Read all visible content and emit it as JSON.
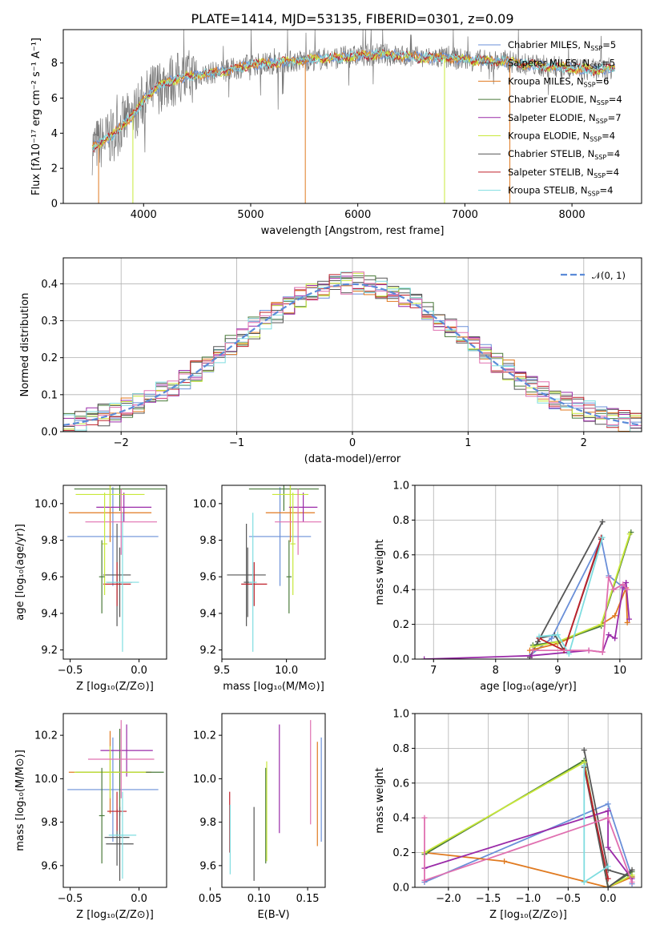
{
  "figure": {
    "title": "PLATE=1414, MJD=53135, FIBERID=0301, z=0.09"
  },
  "colors": {
    "chabrier_miles": "#6a8fd8",
    "salpeter_miles": "#555555",
    "kroupa_miles": "#e07a20",
    "chabrier_elodie": "#4a7a3a",
    "salpeter_elodie": "#9a2aa8",
    "kroupa_elodie": "#c8e83a",
    "chabrier_stelib": "#555555",
    "salpeter_stelib": "#c0202a",
    "kroupa_stelib": "#7fdde0",
    "data": "#777777",
    "pink": "#e070b0",
    "normal": "#5b8bd8"
  },
  "chart_data": [
    {
      "id": "spectrum",
      "type": "line",
      "xlabel": "wavelength [Angstrom, rest frame]",
      "ylabel": "Flux [fλ10⁻¹⁷ erg cm⁻² s⁻¹ A⁻¹]",
      "xlim": [
        3250,
        8650
      ],
      "ylim": [
        0,
        9.9
      ],
      "xticks": [
        "4000",
        "5000",
        "6000",
        "7000",
        "8000"
      ],
      "yticks": [
        "0",
        "2",
        "4",
        "6",
        "8"
      ],
      "legend_position": "upper right",
      "legend": [
        "Chabrier MILES, N_SSP=5",
        "Salpeter MILES, N_SSP=5",
        "Kroupa MILES, N_SSP=6",
        "Chabrier ELODIE, N_SSP=4",
        "Salpeter ELODIE, N_SSP=7",
        "Kroupa ELODIE, N_SSP=4",
        "Chabrier STELIB, N_SSP=4",
        "Salpeter STELIB, N_SSP=4",
        "Kroupa STELIB, N_SSP=4"
      ],
      "continuum_x": [
        3520,
        3700,
        3800,
        3900,
        4000,
        4100,
        4200,
        4400,
        4600,
        4800,
        5000,
        5200,
        5400,
        5600,
        5800,
        6000,
        6200,
        6400,
        6600,
        6800,
        7000,
        7200,
        7400,
        7600,
        7800,
        8000,
        8200,
        8400
      ],
      "continuum_y": [
        3.2,
        3.8,
        4.5,
        5.0,
        5.9,
        6.5,
        6.9,
        7.2,
        7.4,
        7.6,
        7.9,
        8.0,
        8.1,
        8.2,
        8.3,
        8.4,
        8.5,
        8.4,
        8.3,
        8.3,
        8.2,
        8.1,
        8.1,
        7.9,
        7.8,
        7.7,
        7.6,
        7.7
      ]
    },
    {
      "id": "residual_histogram",
      "type": "step",
      "xlabel": "(data-model)/error",
      "ylabel": "Normed distribution",
      "xlim": [
        -2.5,
        2.5
      ],
      "ylim": [
        0,
        0.47
      ],
      "xticks": [
        "−2",
        "−1",
        "0",
        "1",
        "2"
      ],
      "yticks": [
        "0.0",
        "0.1",
        "0.2",
        "0.3",
        "0.4"
      ],
      "grid": true,
      "legend": [
        "𝒩(0, 1)"
      ],
      "gaussian": {
        "mu": 0,
        "sigma": 1
      }
    },
    {
      "id": "age_vs_Z",
      "type": "errorbar",
      "xlabel": "Z [log₁₀(Z/Z⊙)]",
      "ylabel": "age  [log₁₀(age/yr)]",
      "xlim": [
        -0.55,
        0.2
      ],
      "ylim": [
        9.15,
        10.1
      ],
      "xticks": [
        "−0.5",
        "0.0"
      ],
      "yticks": [
        "9.2",
        "9.4",
        "9.6",
        "9.8",
        "10.0"
      ],
      "points": [
        {
          "x": -0.19,
          "xerr": 0.33,
          "y": 9.82,
          "yerr": 0.27,
          "c": "chabrier_miles"
        },
        {
          "x": -0.16,
          "xerr": 0.1,
          "y": 9.61,
          "yerr": 0.28,
          "c": "salpeter_miles"
        },
        {
          "x": -0.21,
          "xerr": 0.3,
          "y": 9.95,
          "yerr": 0.16,
          "c": "kroupa_miles"
        },
        {
          "x": -0.14,
          "xerr": 0.33,
          "y": 10.08,
          "yerr": 0.12,
          "c": "chabrier_elodie"
        },
        {
          "x": -0.11,
          "xerr": 0.2,
          "y": 9.98,
          "yerr": 0.08,
          "c": "salpeter_elodie"
        },
        {
          "x": -0.21,
          "xerr": 0.25,
          "y": 10.05,
          "yerr": 0.07,
          "c": "kroupa_elodie"
        },
        {
          "x": -0.14,
          "xerr": 0.09,
          "y": 9.57,
          "yerr": 0.19,
          "c": "chabrier_stelib"
        },
        {
          "x": -0.16,
          "xerr": 0.1,
          "y": 9.56,
          "yerr": 0.12,
          "c": "salpeter_stelib"
        },
        {
          "x": -0.12,
          "xerr": 0.12,
          "y": 9.57,
          "yerr": 0.38,
          "c": "kroupa_stelib"
        },
        {
          "x": -0.13,
          "xerr": 0.26,
          "y": 9.9,
          "yerr": 0.18,
          "c": "pink"
        },
        {
          "x": -0.25,
          "xerr": 0.02,
          "y": 9.78,
          "yerr": 0.28,
          "c": "kroupa_elodie"
        },
        {
          "x": -0.27,
          "xerr": 0.02,
          "y": 9.6,
          "yerr": 0.2,
          "c": "chabrier_elodie"
        }
      ]
    },
    {
      "id": "age_vs_mass",
      "type": "errorbar",
      "xlabel": "mass [log₁₀(M/M⊙)]",
      "ylabel": "",
      "xlim": [
        9.5,
        10.3
      ],
      "ylim": [
        9.15,
        10.1
      ],
      "xticks": [
        "9.5",
        "10.0"
      ],
      "yticks": [
        "9.2",
        "9.4",
        "9.6",
        "9.8",
        "10.0"
      ],
      "points": [
        {
          "x": 9.95,
          "xerr": 0.24,
          "y": 9.82,
          "yerr": 0.27,
          "c": "chabrier_miles"
        },
        {
          "x": 9.69,
          "xerr": 0.15,
          "y": 9.61,
          "yerr": 0.28,
          "c": "salpeter_miles"
        },
        {
          "x": 10.03,
          "xerr": 0.19,
          "y": 9.95,
          "yerr": 0.16,
          "c": "kroupa_miles"
        },
        {
          "x": 9.98,
          "xerr": 0.27,
          "y": 10.08,
          "yerr": 0.12,
          "c": "chabrier_elodie"
        },
        {
          "x": 10.13,
          "xerr": 0.11,
          "y": 9.98,
          "yerr": 0.08,
          "c": "salpeter_elodie"
        },
        {
          "x": 10.03,
          "xerr": 0.14,
          "y": 10.05,
          "yerr": 0.07,
          "c": "kroupa_elodie"
        },
        {
          "x": 9.7,
          "xerr": 0.03,
          "y": 9.57,
          "yerr": 0.19,
          "c": "chabrier_stelib"
        },
        {
          "x": 9.75,
          "xerr": 0.1,
          "y": 9.56,
          "yerr": 0.12,
          "c": "salpeter_stelib"
        },
        {
          "x": 9.74,
          "xerr": 0.03,
          "y": 9.57,
          "yerr": 0.38,
          "c": "kroupa_stelib"
        },
        {
          "x": 10.09,
          "xerr": 0.18,
          "y": 9.9,
          "yerr": 0.18,
          "c": "pink"
        },
        {
          "x": 10.05,
          "xerr": 0.02,
          "y": 9.78,
          "yerr": 0.28,
          "c": "kroupa_elodie"
        },
        {
          "x": 10.02,
          "xerr": 0.02,
          "y": 9.6,
          "yerr": 0.2,
          "c": "chabrier_elodie"
        }
      ]
    },
    {
      "id": "mass_weight_vs_age",
      "type": "line",
      "xlabel": "age  [log₁₀(age/yr)]",
      "ylabel": "mass weight",
      "xlim": [
        6.7,
        10.35
      ],
      "ylim": [
        0,
        1
      ],
      "xticks": [
        "7",
        "8",
        "9",
        "10"
      ],
      "yticks": [
        "0.0",
        "0.2",
        "0.4",
        "0.6",
        "0.8",
        "1.0"
      ],
      "grid": true,
      "series": [
        {
          "c": "chabrier_miles",
          "x": [
            8.55,
            8.9,
            9.7,
            9.82,
            10.1
          ],
          "y": [
            0.02,
            0.12,
            0.69,
            0.48,
            0.4
          ]
        },
        {
          "c": "salpeter_miles",
          "x": [
            8.55,
            8.68,
            9.72
          ],
          "y": [
            0.01,
            0.1,
            0.79
          ]
        },
        {
          "c": "kroupa_miles",
          "x": [
            8.55,
            9.0,
            9.7,
            9.92,
            10.1,
            10.12
          ],
          "y": [
            0.05,
            0.09,
            0.2,
            0.25,
            0.41,
            0.21
          ]
        },
        {
          "c": "chabrier_elodie",
          "x": [
            8.6,
            9.0,
            9.7,
            10.18
          ],
          "y": [
            0.08,
            0.1,
            0.19,
            0.73
          ]
        },
        {
          "c": "salpeter_elodie",
          "x": [
            6.85,
            8.58,
            9.5,
            9.72,
            9.82,
            9.92,
            10.05,
            10.1,
            10.15
          ],
          "y": [
            0.0,
            0.02,
            0.05,
            0.04,
            0.14,
            0.12,
            0.41,
            0.44,
            0.23
          ]
        },
        {
          "c": "kroupa_elodie",
          "x": [
            8.6,
            9.0,
            9.7,
            10.16
          ],
          "y": [
            0.07,
            0.1,
            0.2,
            0.72
          ]
        },
        {
          "c": "chabrier_stelib",
          "x": [
            8.7,
            8.95,
            9.1,
            9.7
          ],
          "y": [
            0.12,
            0.14,
            0.05,
            0.69
          ]
        },
        {
          "c": "salpeter_stelib",
          "x": [
            8.7,
            9.1,
            9.7
          ],
          "y": [
            0.12,
            0.05,
            0.7
          ]
        },
        {
          "c": "kroupa_stelib",
          "x": [
            8.7,
            9.0,
            9.18,
            9.72
          ],
          "y": [
            0.13,
            0.14,
            0.03,
            0.7
          ]
        },
        {
          "c": "pink",
          "x": [
            8.6,
            9.5,
            9.72,
            9.82,
            9.9,
            10.05,
            10.12
          ],
          "y": [
            0.05,
            0.05,
            0.04,
            0.47,
            0.4,
            0.43,
            0.4
          ]
        }
      ]
    },
    {
      "id": "mass_vs_Z",
      "type": "errorbar",
      "xlabel": "Z [log₁₀(Z/Z⊙)]",
      "ylabel": "mass [log₁₀(M/M⊙)]",
      "xlim": [
        -0.55,
        0.2
      ],
      "ylim": [
        9.5,
        10.3
      ],
      "xticks": [
        "−0.5",
        "0.0"
      ],
      "yticks": [
        "9.6",
        "9.8",
        "10.0",
        "10.2"
      ],
      "points": [
        {
          "x": -0.19,
          "xerr": 0.33,
          "y": 9.95,
          "yerr": 0.24,
          "c": "chabrier_miles"
        },
        {
          "x": -0.16,
          "xerr": 0.09,
          "y": 9.73,
          "yerr": 0.13,
          "c": "salpeter_miles"
        },
        {
          "x": -0.21,
          "xerr": 0.3,
          "y": 10.03,
          "yerr": 0.19,
          "c": "kroupa_miles"
        },
        {
          "x": -0.14,
          "xerr": 0.32,
          "y": 10.03,
          "yerr": 0.2,
          "c": "chabrier_elodie"
        },
        {
          "x": -0.09,
          "xerr": 0.19,
          "y": 10.13,
          "yerr": 0.12,
          "c": "salpeter_elodie"
        },
        {
          "x": -0.21,
          "xerr": 0.26,
          "y": 10.03,
          "yerr": 0.12,
          "c": "kroupa_elodie"
        },
        {
          "x": -0.14,
          "xerr": 0.1,
          "y": 9.7,
          "yerr": 0.17,
          "c": "chabrier_stelib"
        },
        {
          "x": -0.16,
          "xerr": 0.07,
          "y": 9.85,
          "yerr": 0.09,
          "c": "salpeter_stelib"
        },
        {
          "x": -0.12,
          "xerr": 0.1,
          "y": 9.74,
          "yerr": 0.2,
          "c": "kroupa_stelib"
        },
        {
          "x": -0.13,
          "xerr": 0.24,
          "y": 10.09,
          "yerr": 0.18,
          "c": "pink"
        },
        {
          "x": -0.27,
          "xerr": 0.02,
          "y": 9.83,
          "yerr": 0.22,
          "c": "chabrier_elodie"
        }
      ]
    },
    {
      "id": "mass_vs_ebv",
      "type": "errorbar",
      "xlabel": "E(B-V)",
      "ylabel": "",
      "xlim": [
        0.062,
        0.168
      ],
      "ylim": [
        9.5,
        10.3
      ],
      "xticks": [
        "0.05",
        "0.10",
        "0.15"
      ],
      "yticks": [
        "9.6",
        "9.8",
        "10.0",
        "10.2"
      ],
      "points": [
        {
          "x": 0.07,
          "y": 9.8,
          "yerr": 0.14,
          "c": "salpeter_stelib"
        },
        {
          "x": 0.0705,
          "y": 9.72,
          "yerr": 0.16,
          "c": "kroupa_stelib"
        },
        {
          "x": 0.095,
          "y": 9.7,
          "yerr": 0.17,
          "c": "chabrier_stelib"
        },
        {
          "x": 0.107,
          "y": 9.83,
          "yerr": 0.22,
          "c": "chabrier_elodie"
        },
        {
          "x": 0.108,
          "y": 9.85,
          "yerr": 0.23,
          "c": "kroupa_elodie"
        },
        {
          "x": 0.121,
          "y": 10.0,
          "yerr": 0.25,
          "c": "salpeter_elodie"
        },
        {
          "x": 0.153,
          "y": 10.03,
          "yerr": 0.24,
          "c": "pink"
        },
        {
          "x": 0.16,
          "y": 9.93,
          "yerr": 0.24,
          "c": "kroupa_miles"
        },
        {
          "x": 0.164,
          "y": 9.95,
          "yerr": 0.24,
          "c": "chabrier_miles"
        }
      ]
    },
    {
      "id": "mass_weight_vs_Z",
      "type": "line",
      "xlabel": "Z [log₁₀(Z/Z⊙)]",
      "ylabel": "mass weight",
      "xlim": [
        -2.42,
        0.42
      ],
      "ylim": [
        0,
        1
      ],
      "xticks": [
        "−2.0",
        "−1.5",
        "−1.0",
        "−0.5",
        "0.0"
      ],
      "yticks": [
        "0.0",
        "0.2",
        "0.4",
        "0.6",
        "0.8",
        "1.0"
      ],
      "grid": true,
      "series": [
        {
          "c": "chabrier_miles",
          "x": [
            -2.3,
            0.0,
            0.3,
            0.3
          ],
          "y": [
            0.03,
            0.48,
            0.06,
            0.02
          ]
        },
        {
          "c": "salpeter_miles",
          "x": [
            -0.3,
            0.0,
            0.3
          ],
          "y": [
            0.79,
            0.1,
            0.06
          ]
        },
        {
          "c": "kroupa_miles",
          "x": [
            -2.3,
            -1.3,
            0.0,
            0.3
          ],
          "y": [
            0.2,
            0.15,
            0.0,
            0.06
          ]
        },
        {
          "c": "chabrier_elodie",
          "x": [
            -2.3,
            -0.3,
            0.0,
            0.3
          ],
          "y": [
            0.19,
            0.73,
            0.0,
            0.09
          ]
        },
        {
          "c": "salpeter_elodie",
          "x": [
            -2.3,
            0.0,
            0.0,
            0.3
          ],
          "y": [
            0.11,
            0.44,
            0.23,
            0.05
          ]
        },
        {
          "c": "kroupa_elodie",
          "x": [
            -2.3,
            -0.3,
            0.0,
            0.3
          ],
          "y": [
            0.2,
            0.72,
            0.0,
            0.07
          ]
        },
        {
          "c": "chabrier_stelib",
          "x": [
            -0.3,
            0.0,
            0.3
          ],
          "y": [
            0.69,
            0.0,
            0.1
          ]
        },
        {
          "c": "salpeter_stelib",
          "x": [
            -0.3,
            0.0
          ],
          "y": [
            0.7,
            0.05
          ]
        },
        {
          "c": "kroupa_stelib",
          "x": [
            -0.3,
            -0.3,
            0.0
          ],
          "y": [
            0.7,
            0.03,
            0.12
          ]
        },
        {
          "c": "pink",
          "x": [
            -2.3,
            -2.3,
            0.0,
            0.3
          ],
          "y": [
            0.4,
            0.04,
            0.4,
            0.03
          ]
        }
      ]
    }
  ]
}
